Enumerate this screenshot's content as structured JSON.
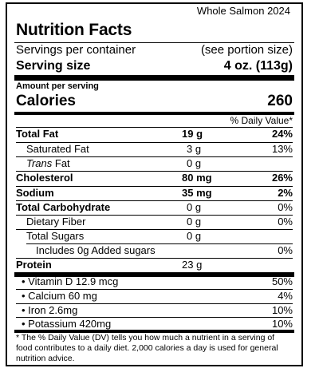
{
  "label": {
    "brand": "Whole Salmon 2024",
    "title": "Nutrition Facts",
    "servings_label": "Servings per container",
    "servings_value": "(see portion size)",
    "serving_size_label": "Serving size",
    "serving_size_value": "4 oz. (113g)",
    "amount_per_serving": "Amount per serving",
    "calories_label": "Calories",
    "calories_value": "260",
    "dv_header": "% Daily Value*",
    "nutrients": [
      {
        "name": "Total Fat",
        "amount": "19 g",
        "dv": "24%"
      },
      {
        "name": "Saturated Fat",
        "amount": "3 g",
        "dv": "13%"
      },
      {
        "name_italic": "Trans",
        "name_rest": " Fat",
        "amount": "0 g",
        "dv": ""
      },
      {
        "name": "Cholesterol",
        "amount": "80 mg",
        "dv": "26%"
      },
      {
        "name": "Sodium",
        "amount": "35 mg",
        "dv": "2%"
      },
      {
        "name": "Total Carbohydrate",
        "amount": "0 g",
        "dv": "0%"
      },
      {
        "name": "Dietary Fiber",
        "amount": "0 g",
        "dv": "0%"
      },
      {
        "name": "Total Sugars",
        "amount": "0 g",
        "dv": ""
      },
      {
        "name": "Includes 0g Added sugars",
        "amount": "",
        "dv": "0%"
      },
      {
        "name": "Protein",
        "amount": "23 g",
        "dv": ""
      }
    ],
    "vitamins": [
      {
        "name": "• Vitamin D 12.9 mcg",
        "dv": "50%"
      },
      {
        "name": "• Calcium 60 mg",
        "dv": "4%"
      },
      {
        "name": "• Iron 2.6mg",
        "dv": "10%"
      },
      {
        "name": "• Potassium 420mg",
        "dv": "10%"
      }
    ],
    "footnote": "* The % Daily Value (DV) tells you how much a nutrient in a serving of food contributes to a daily diet. 2,000 calories a day is used for general nutrition advice."
  }
}
